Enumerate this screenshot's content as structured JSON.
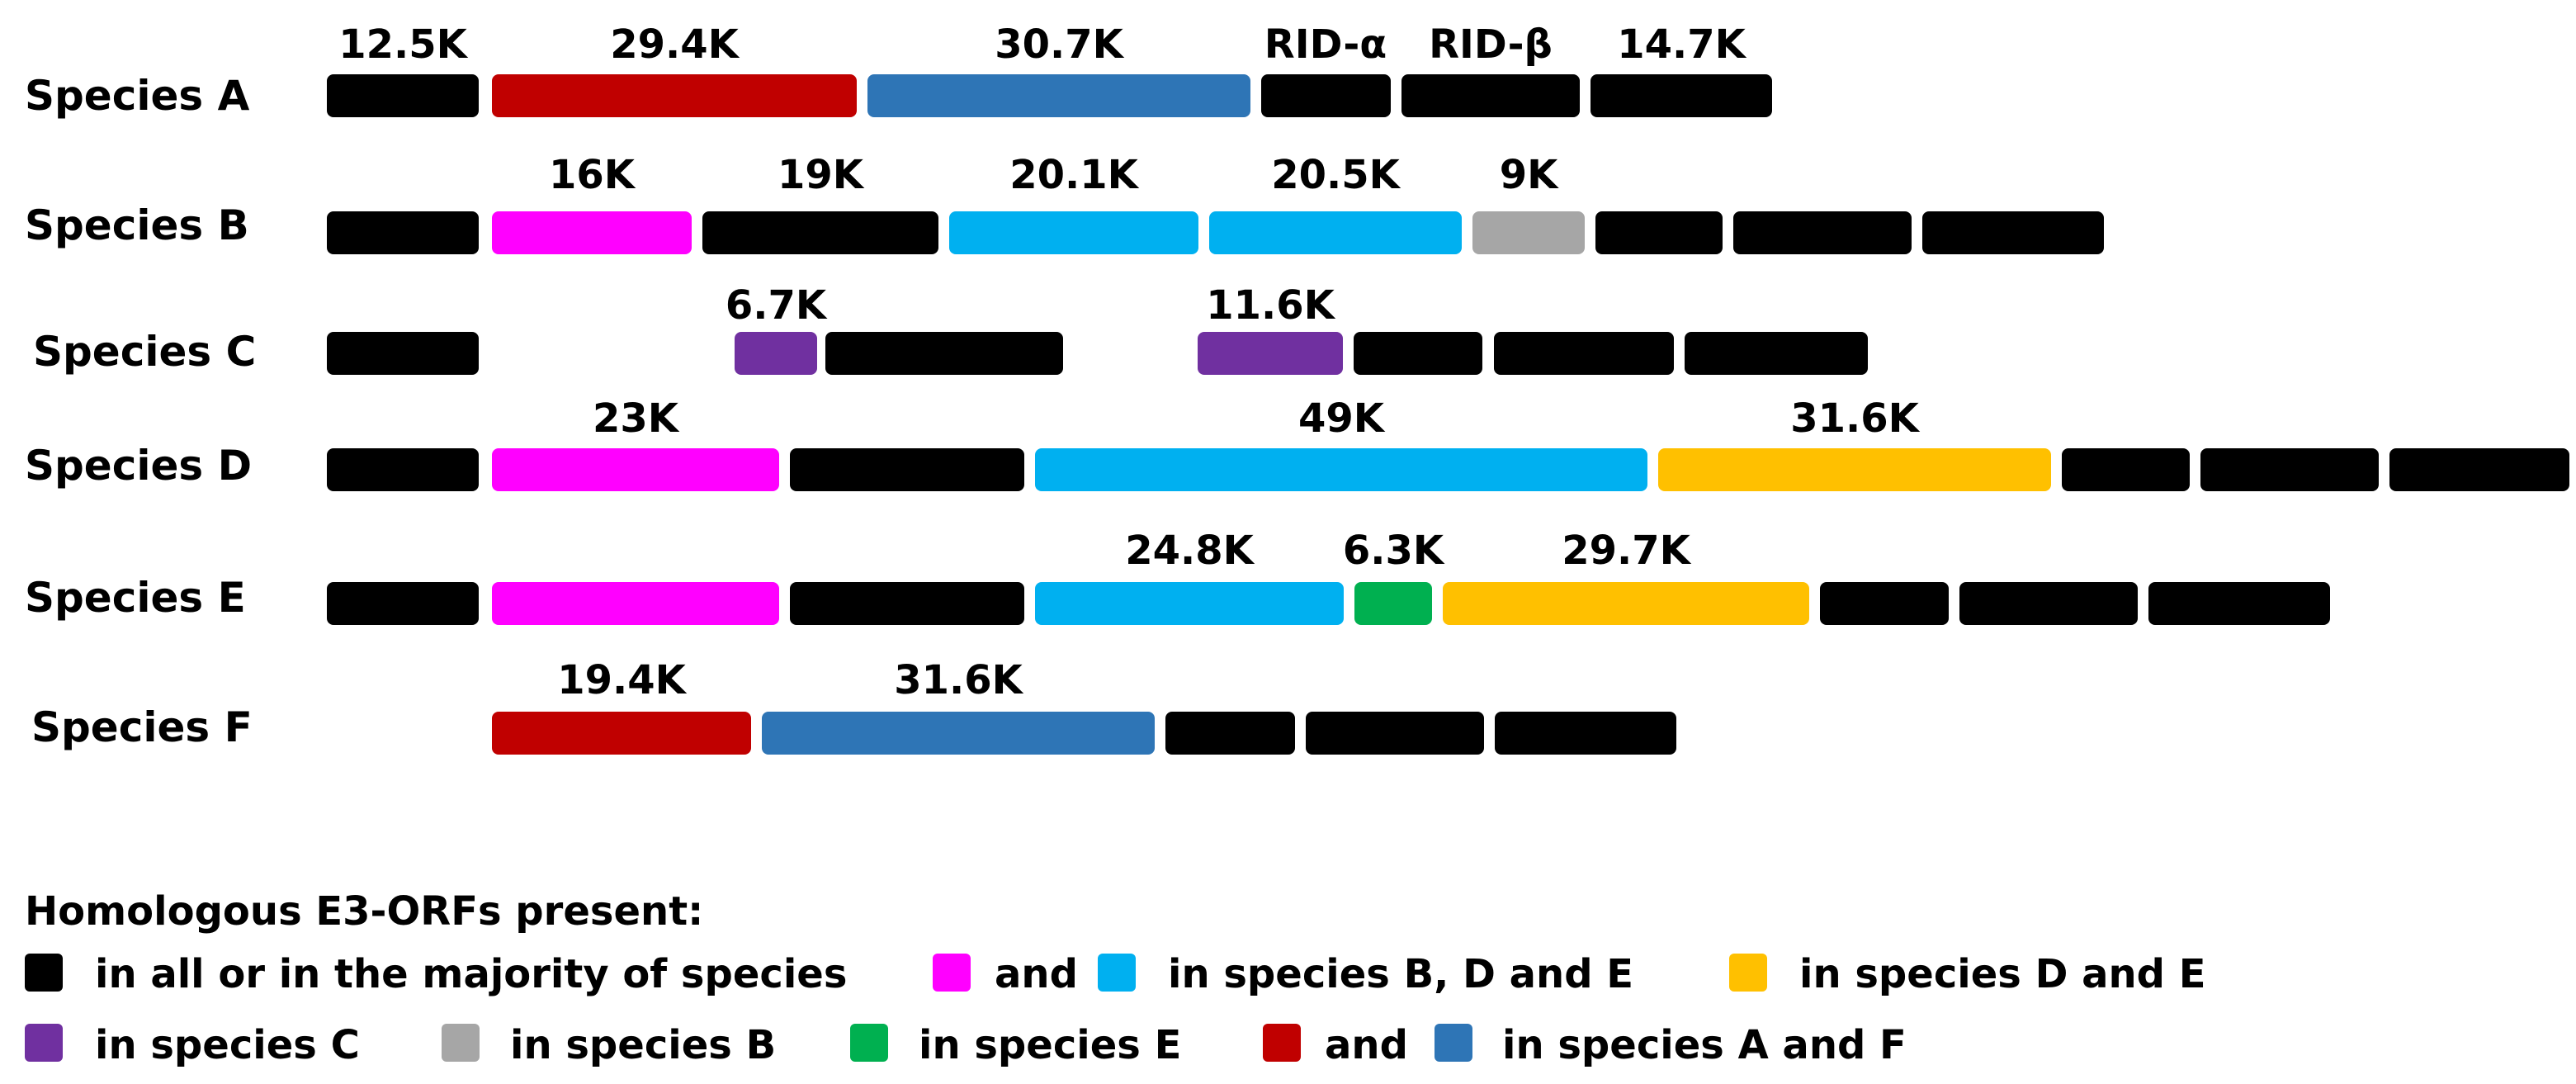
{
  "colors": {
    "black": "#000000",
    "red": "#c00000",
    "steel": "#2e75b6",
    "magenta": "#ff00ff",
    "sky": "#00b0f0",
    "gray": "#a6a6a6",
    "purple": "#7030a0",
    "gold": "#ffc000",
    "green": "#00b050"
  },
  "rows": [
    {
      "species": "Species A",
      "segments": [
        {
          "label": "12.5K",
          "color": "black"
        },
        {
          "label": "29.4K",
          "color": "red"
        },
        {
          "label": "30.7K",
          "color": "steel"
        },
        {
          "label": "RID-α",
          "color": "black"
        },
        {
          "label": "RID-β",
          "color": "black"
        },
        {
          "label": "14.7K",
          "color": "black"
        }
      ]
    },
    {
      "species": "Species B",
      "segments": [
        {
          "label": "",
          "color": "black"
        },
        {
          "label": "16K",
          "color": "magenta"
        },
        {
          "label": "19K",
          "color": "black"
        },
        {
          "label": "20.1K",
          "color": "sky"
        },
        {
          "label": "20.5K",
          "color": "sky"
        },
        {
          "label": "9K",
          "color": "gray"
        },
        {
          "label": "",
          "color": "black"
        },
        {
          "label": "",
          "color": "black"
        },
        {
          "label": "",
          "color": "black"
        }
      ]
    },
    {
      "species": "Species C",
      "segments": [
        {
          "label": "",
          "color": "black"
        },
        {
          "label": "6.7K",
          "color": "purple"
        },
        {
          "label": "",
          "color": "black"
        },
        {
          "label": "11.6K",
          "color": "purple"
        },
        {
          "label": "",
          "color": "black"
        },
        {
          "label": "",
          "color": "black"
        },
        {
          "label": "",
          "color": "black"
        }
      ]
    },
    {
      "species": "Species D",
      "segments": [
        {
          "label": "",
          "color": "black"
        },
        {
          "label": "23K",
          "color": "magenta"
        },
        {
          "label": "",
          "color": "black"
        },
        {
          "label": "49K",
          "color": "sky"
        },
        {
          "label": "31.6K",
          "color": "gold"
        },
        {
          "label": "",
          "color": "black"
        },
        {
          "label": "",
          "color": "black"
        },
        {
          "label": "",
          "color": "black"
        }
      ]
    },
    {
      "species": "Species E",
      "segments": [
        {
          "label": "",
          "color": "black"
        },
        {
          "label": "",
          "color": "magenta"
        },
        {
          "label": "",
          "color": "black"
        },
        {
          "label": "24.8K",
          "color": "sky"
        },
        {
          "label": "6.3K",
          "color": "green"
        },
        {
          "label": "29.7K",
          "color": "gold"
        },
        {
          "label": "",
          "color": "black"
        },
        {
          "label": "",
          "color": "black"
        },
        {
          "label": "",
          "color": "black"
        }
      ]
    },
    {
      "species": "Species F",
      "segments": [
        {
          "label": "19.4K",
          "color": "red"
        },
        {
          "label": "31.6K",
          "color": "steel"
        },
        {
          "label": "",
          "color": "black"
        },
        {
          "label": "",
          "color": "black"
        },
        {
          "label": "",
          "color": "black"
        }
      ]
    }
  ],
  "legend": {
    "title": "Homologous E3-ORFs present:",
    "lines": [
      [
        {
          "swatch": "black",
          "text": "in all or in the majority of species"
        },
        {
          "swatch": "magenta",
          "text": "and"
        },
        {
          "swatch": "sky",
          "text": "in species B, D and E"
        },
        {
          "swatch": "gold",
          "text": "in species D and E"
        }
      ],
      [
        {
          "swatch": "purple",
          "text": "in species C"
        },
        {
          "swatch": "gray",
          "text": "in species B"
        },
        {
          "swatch": "green",
          "text": "in species E"
        },
        {
          "swatch": "red",
          "text": "and"
        },
        {
          "swatch": "steel",
          "text": "in species A and F"
        }
      ]
    ]
  }
}
